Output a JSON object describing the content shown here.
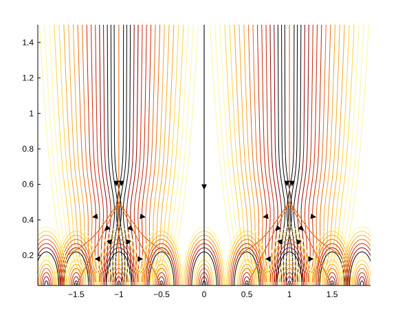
{
  "chart_data": {
    "type": "line",
    "title": "",
    "xlabel": "",
    "ylabel": "",
    "xlim": [
      -1.95,
      1.95
    ],
    "ylim": [
      0.03,
      1.5
    ],
    "grid": false,
    "x_ticks": [
      {
        "value": -1.5,
        "label": "−1.5"
      },
      {
        "value": -1,
        "label": "−1"
      },
      {
        "value": -0.5,
        "label": "−0.5"
      },
      {
        "value": 0,
        "label": "0"
      },
      {
        "value": 0.5,
        "label": "0.5"
      },
      {
        "value": 1,
        "label": "1"
      },
      {
        "value": 1.5,
        "label": "1.5"
      }
    ],
    "y_ticks": [
      {
        "value": 0.2,
        "label": "0.2"
      },
      {
        "value": 0.4,
        "label": "0.4"
      },
      {
        "value": 0.6,
        "label": "0.6"
      },
      {
        "value": 0.8,
        "label": "0.8"
      },
      {
        "value": 1.0,
        "label": "1"
      },
      {
        "value": 1.2,
        "label": "1.2"
      },
      {
        "value": 1.4,
        "label": "1.4"
      }
    ],
    "colormap": [
      "#000000",
      "#8b0000",
      "#cc2200",
      "#e86a10",
      "#f5a623",
      "#ffd23f",
      "#fff4a0"
    ],
    "period": 2,
    "fixed_points": [
      [
        -1,
        0.5
      ],
      [
        1,
        0.5
      ]
    ],
    "separatrix_endpoints": [
      [
        -0.5,
        0.03
      ],
      [
        -1.5,
        0.03
      ],
      [
        0.5,
        0.03
      ],
      [
        1.5,
        0.03
      ]
    ],
    "vertical_flow_lines": [
      -1,
      0,
      1
    ]
  }
}
